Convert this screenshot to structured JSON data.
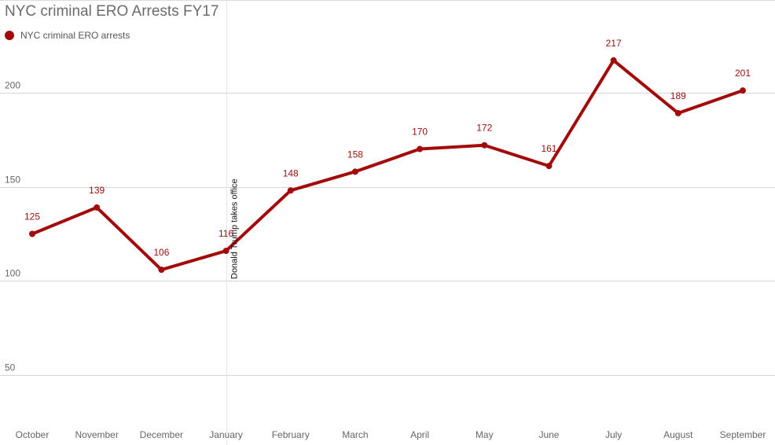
{
  "chart_data": {
    "type": "line",
    "title": "NYC criminal ERO Arrests FY17",
    "categories": [
      "October",
      "November",
      "December",
      "January",
      "February",
      "March",
      "April",
      "May",
      "June",
      "July",
      "August",
      "September"
    ],
    "series": [
      {
        "name": "NYC criminal ERO arrests",
        "values": [
          125,
          139,
          106,
          116,
          148,
          158,
          170,
          172,
          161,
          217,
          189,
          201
        ]
      }
    ],
    "yticks": [
      50,
      100,
      150,
      200
    ],
    "ylim": [
      26,
      249
    ],
    "grid": true,
    "legend_position": "top-left",
    "line_color": "#a30b0b",
    "annotation": {
      "label": "Donald Trump takes office",
      "category": "January"
    }
  }
}
